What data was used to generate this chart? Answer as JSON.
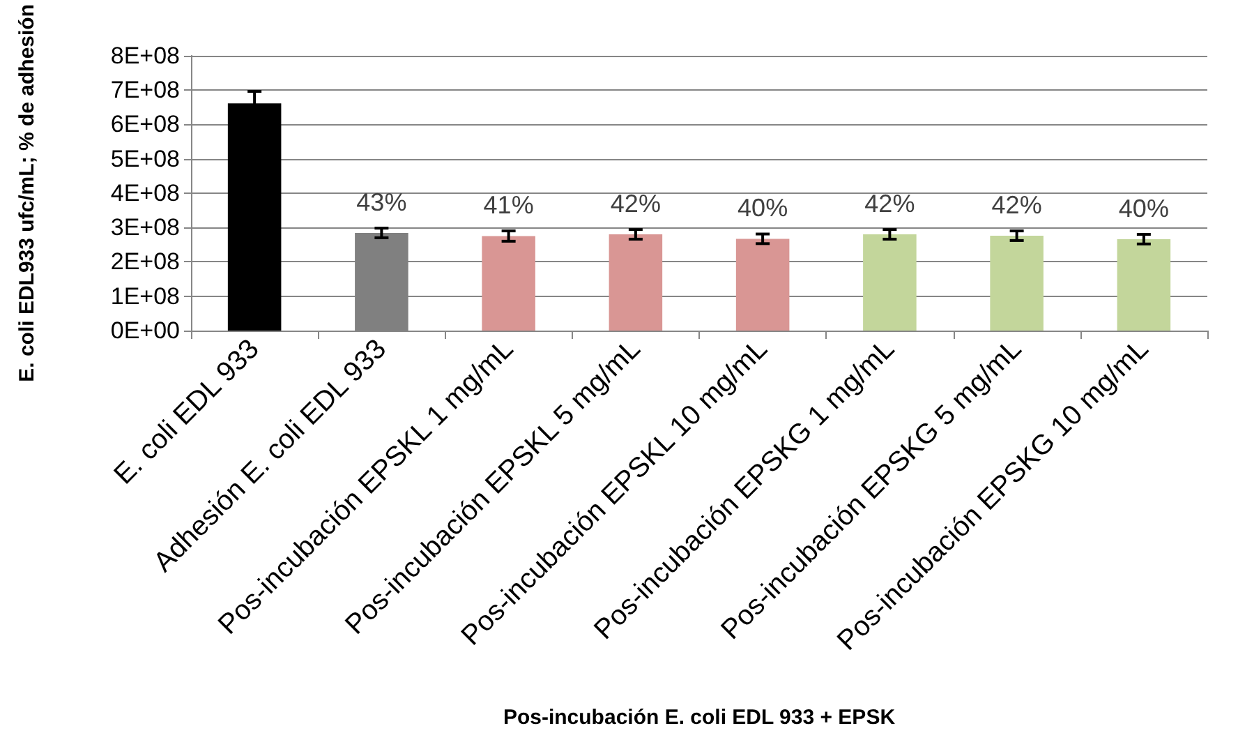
{
  "chart_data": {
    "type": "bar",
    "xlabel": "Pos-incubación E. coli EDL 933 + EPSK",
    "ylabel": "E. coli EDL933 ufc/mL; % de adhesión",
    "categories": [
      "E. coli EDL 933",
      "Adhesión E. coli EDL 933",
      "Pos-incubación EPSKL 1 mg/mL",
      "Pos-incubación EPSKL 5 mg/mL",
      "Pos-incubación EPSKL 10 mg/mL",
      "Pos-incubación EPSKG 1 mg/mL",
      "Pos-incubación EPSKG 5 mg/mL",
      "Pos-incubación EPSKG 10 mg/mL"
    ],
    "values": [
      661000000,
      284000000,
      275000000,
      280000000,
      267000000,
      280000000,
      276000000,
      266000000
    ],
    "errors": [
      35000000,
      14000000,
      15000000,
      14000000,
      14000000,
      14000000,
      14000000,
      14000000
    ],
    "colors": [
      "#000000",
      "#808080",
      "#d99694",
      "#d99694",
      "#d99694",
      "#c3d69b",
      "#c3d69b",
      "#c3d69b"
    ],
    "annotations": [
      {
        "text": "43%",
        "x": "Adhesión E. coli EDL 933",
        "y": 284000000
      },
      {
        "text": "41%",
        "x": "Pos-incubación EPSKL 1 mg/mL",
        "y": 275000000
      },
      {
        "text": "42%",
        "x": "Pos-incubación EPSKL 5 mg/mL",
        "y": 280000000
      },
      {
        "text": "40%",
        "x": "Pos-incubación EPSKL 10 mg/mL",
        "y": 267000000
      },
      {
        "text": "42%",
        "x": "Pos-incubación EPSKG 1 mg/mL",
        "y": 280000000
      },
      {
        "text": "42%",
        "x": "Pos-incubación EPSKG 5 mg/mL",
        "y": 276000000
      },
      {
        "text": "40%",
        "x": "Pos-incubación EPSKG 10 mg/mL",
        "y": 266000000
      }
    ],
    "ylim": [
      0,
      800000000
    ],
    "yticks": [
      {
        "value": 0,
        "label": "0E+00"
      },
      {
        "value": 100000000,
        "label": "1E+08"
      },
      {
        "value": 200000000,
        "label": "2E+08"
      },
      {
        "value": 300000000,
        "label": "3E+08"
      },
      {
        "value": 400000000,
        "label": "4E+08"
      },
      {
        "value": 500000000,
        "label": "5E+08"
      },
      {
        "value": 600000000,
        "label": "6E+08"
      },
      {
        "value": 700000000,
        "label": "7E+08"
      },
      {
        "value": 800000000,
        "label": "8E+08"
      }
    ],
    "grid": "y"
  }
}
